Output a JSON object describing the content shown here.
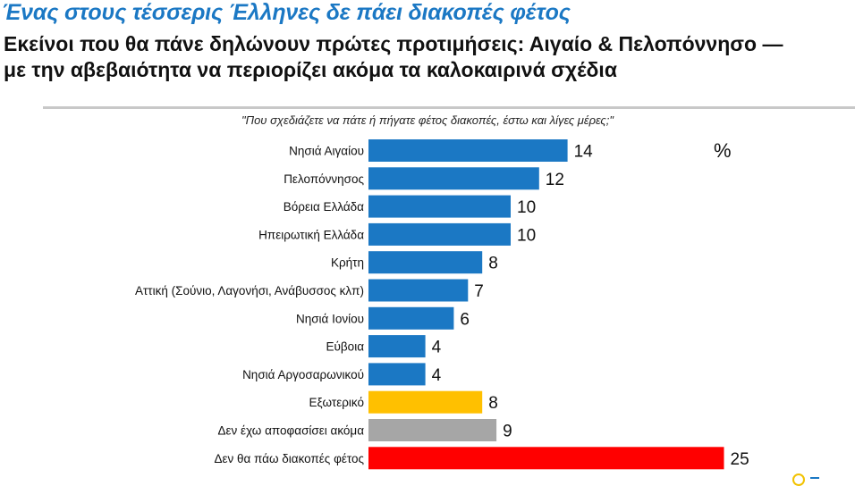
{
  "header": {
    "title": "Ένας στους τέσσερις Έλληνες δε πάει διακοπές φέτος",
    "subtitle_line1": "Εκείνοι που θα πάνε δηλώνουν πρώτες προτιμήσεις: Αιγαίο & Πελοπόννησο —",
    "subtitle_line2": "με την αβεβαιότητα να περιορίζει ακόμα τα καλοκαιρινά σχέδια"
  },
  "chart_data": {
    "type": "bar",
    "orientation": "horizontal",
    "title": "\"Που σχεδιάζετε να πάτε ή πήγατε φέτος διακοπές, έστω και λίγες μέρες;\"",
    "unit": "%",
    "xlim": [
      0,
      25
    ],
    "grid": false,
    "categories": [
      "Νησιά Αιγαίου",
      "Πελοπόννησος",
      "Βόρεια Ελλάδα",
      "Ηπειρωτική Ελλάδα",
      "Κρήτη",
      "Αττική (Σούνιο, Λαγονήσι, Ανάβυσσος κλπ)",
      "Νησιά Ιονίου",
      "Εύβοια",
      "Νησιά Αργοσαρωνικού",
      "Εξωτερικό",
      "Δεν έχω αποφασίσει ακόμα",
      "Δεν θα πάω διακοπές φέτος"
    ],
    "values": [
      14,
      12,
      10,
      10,
      8,
      7,
      6,
      4,
      4,
      8,
      9,
      25
    ],
    "colors": [
      "#1b78c4",
      "#1b78c4",
      "#1b78c4",
      "#1b78c4",
      "#1b78c4",
      "#1b78c4",
      "#1b78c4",
      "#1b78c4",
      "#1b78c4",
      "#ffc000",
      "#a6a6a6",
      "#ff0000"
    ]
  },
  "logo": {
    "ring_color": "#f2c200",
    "bar_color": "#1b78c4"
  }
}
